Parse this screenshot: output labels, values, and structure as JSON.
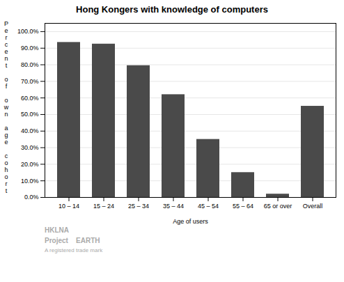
{
  "chart_data": {
    "type": "bar",
    "title": "Hong Kongers with knowledge of computers",
    "categories": [
      "10 – 14",
      "15 – 24",
      "25 – 34",
      "35 – 44",
      "45 – 54",
      "55 – 64",
      "65 or over",
      "Overall"
    ],
    "values": [
      93.5,
      92.5,
      79.5,
      62.0,
      35.0,
      15.0,
      2.0,
      55.0
    ],
    "color": "#4a4a4a",
    "xlabel": "Age of users",
    "ylabel": "Percent of own age cohort",
    "ylim": [
      0,
      105
    ],
    "yticks": [
      {
        "value": 0,
        "label": "0.0%"
      },
      {
        "value": 10,
        "label": "10.0%"
      },
      {
        "value": 20,
        "label": "20.0%"
      },
      {
        "value": 30,
        "label": "30.0%"
      },
      {
        "value": 40,
        "label": "40.0%"
      },
      {
        "value": 50,
        "label": "50.0%"
      },
      {
        "value": 60,
        "label": "60.0%"
      },
      {
        "value": 70,
        "label": "70.0%"
      },
      {
        "value": 80,
        "label": "80.0%"
      },
      {
        "value": 90,
        "label": "90.0%"
      },
      {
        "value": 100,
        "label": "100.0%"
      }
    ],
    "grid": true,
    "annotations": [
      "HKLNA",
      "Project    EARTH",
      "A registered trade mark"
    ]
  }
}
